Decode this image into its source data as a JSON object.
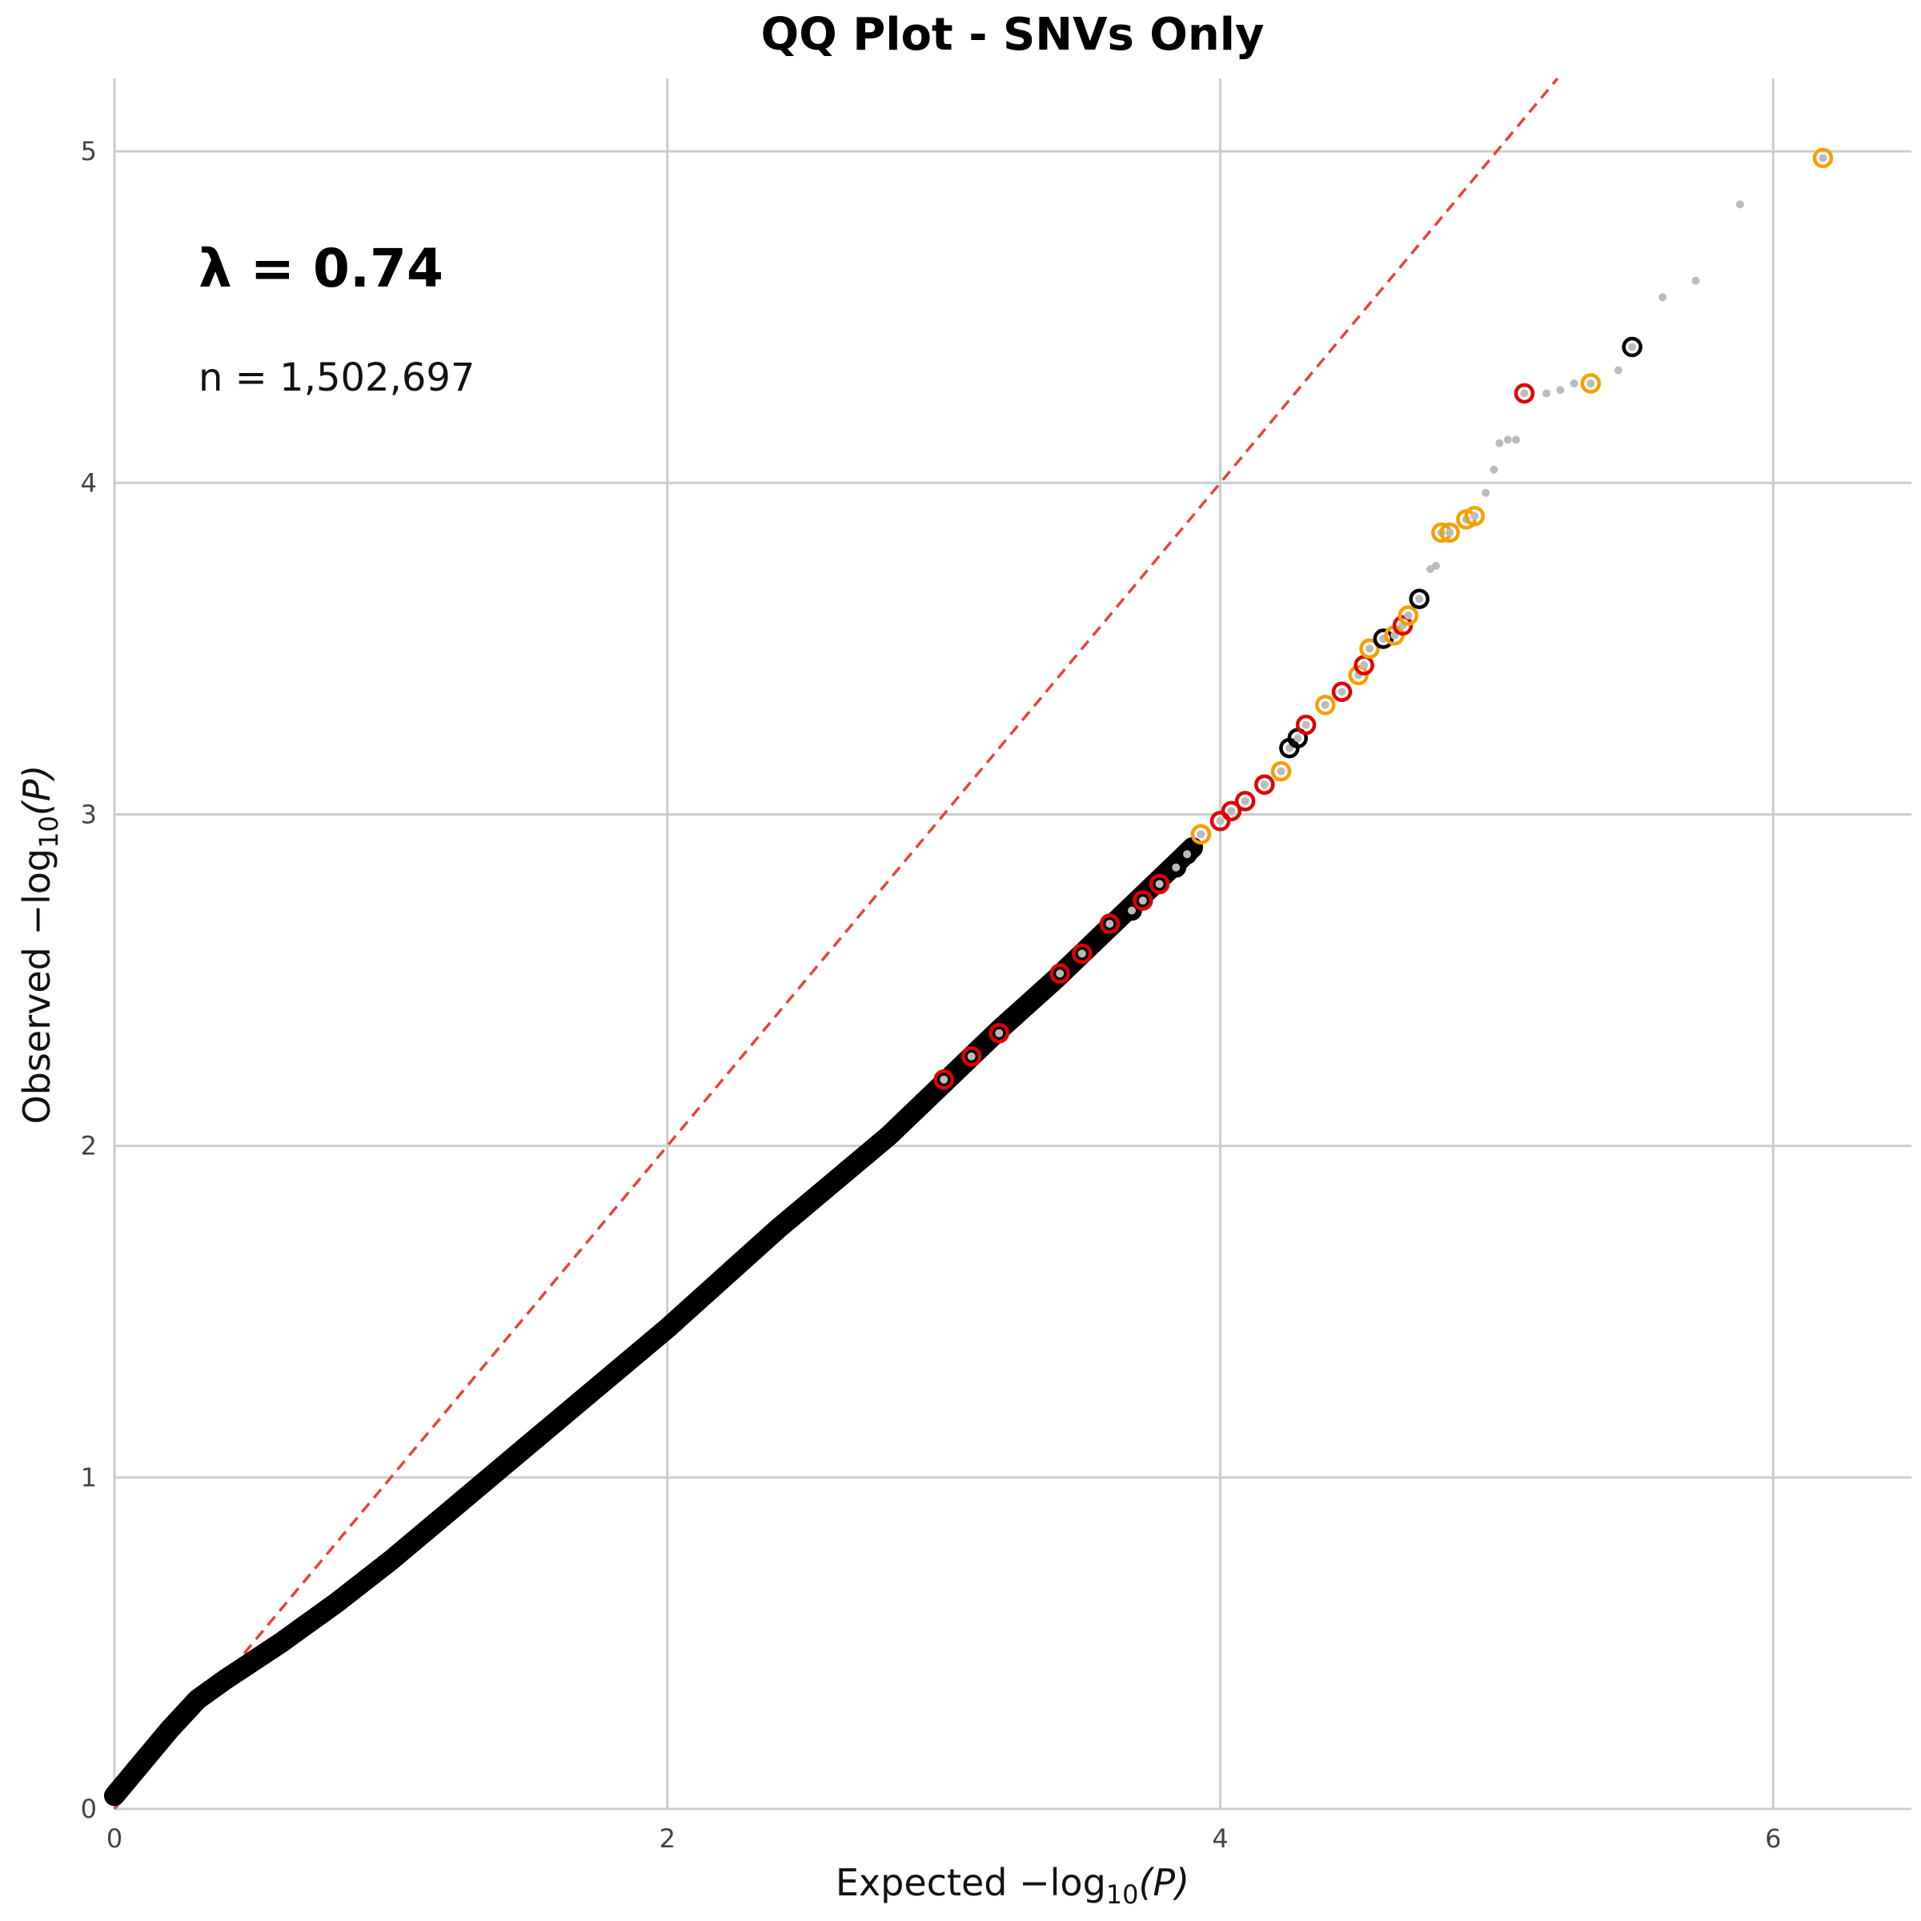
{
  "chart_data": {
    "type": "scatter",
    "title": "QQ Plot - SNVs Only",
    "xlabel_prefix": "Expected −log",
    "ylabel_prefix": "Observed −log",
    "label_sub": "10",
    "label_suffix": "(P)",
    "xlim": [
      0,
      6.5
    ],
    "ylim": [
      0,
      5.22
    ],
    "x_ticks": [
      0,
      2,
      4,
      6
    ],
    "y_ticks": [
      0,
      1,
      2,
      3,
      4,
      5
    ],
    "grid": true,
    "annotations": {
      "lambda_text": "λ = 0.74",
      "n_text": "n = 1,502,697"
    },
    "reference_line": {
      "slope": 1,
      "intercept": 0,
      "color": "#e8443a",
      "style": "dashed"
    },
    "colors": {
      "bulk": "#000000",
      "red": "#e00000",
      "orange": "#f5a000",
      "gray": "#bbbbbb",
      "black": "#000000"
    },
    "curve": {
      "x": [
        0,
        0.1,
        0.2,
        0.3,
        0.4,
        0.6,
        0.8,
        1.0,
        1.2,
        1.4,
        1.6,
        1.8,
        2.0,
        2.2,
        2.4,
        2.6,
        2.8,
        3.0,
        3.2,
        3.4,
        3.6,
        3.8,
        3.9
      ],
      "y": [
        0.04,
        0.14,
        0.24,
        0.33,
        0.39,
        0.5,
        0.62,
        0.75,
        0.89,
        1.03,
        1.17,
        1.31,
        1.45,
        1.6,
        1.75,
        1.89,
        2.03,
        2.19,
        2.35,
        2.5,
        2.66,
        2.82,
        2.9
      ]
    },
    "highlighted_points": [
      {
        "x": 3.0,
        "y": 2.2,
        "group": "red"
      },
      {
        "x": 3.1,
        "y": 2.27,
        "group": "red"
      },
      {
        "x": 3.2,
        "y": 2.34,
        "group": "red"
      },
      {
        "x": 3.42,
        "y": 2.52,
        "group": "red"
      },
      {
        "x": 3.5,
        "y": 2.58,
        "group": "red"
      },
      {
        "x": 3.6,
        "y": 2.67,
        "group": "red"
      },
      {
        "x": 3.68,
        "y": 2.71,
        "group": "black"
      },
      {
        "x": 3.72,
        "y": 2.74,
        "group": "red"
      },
      {
        "x": 3.78,
        "y": 2.79,
        "group": "red"
      },
      {
        "x": 3.84,
        "y": 2.84,
        "group": "black"
      },
      {
        "x": 3.88,
        "y": 2.88,
        "group": "black"
      },
      {
        "x": 3.93,
        "y": 2.94,
        "group": "orange"
      },
      {
        "x": 4.0,
        "y": 2.98,
        "group": "red"
      },
      {
        "x": 4.04,
        "y": 3.01,
        "group": "red"
      },
      {
        "x": 4.09,
        "y": 3.04,
        "group": "red"
      },
      {
        "x": 4.16,
        "y": 3.09,
        "group": "red"
      },
      {
        "x": 4.22,
        "y": 3.13,
        "group": "orange"
      },
      {
        "x": 4.25,
        "y": 3.2,
        "group": "black"
      },
      {
        "x": 4.28,
        "y": 3.23,
        "group": "black"
      },
      {
        "x": 4.31,
        "y": 3.27,
        "group": "red"
      },
      {
        "x": 4.38,
        "y": 3.33,
        "group": "orange"
      },
      {
        "x": 4.44,
        "y": 3.37,
        "group": "red"
      },
      {
        "x": 4.5,
        "y": 3.42,
        "group": "orange"
      },
      {
        "x": 4.52,
        "y": 3.45,
        "group": "red"
      },
      {
        "x": 4.54,
        "y": 3.5,
        "group": "orange"
      },
      {
        "x": 4.59,
        "y": 3.53,
        "group": "black"
      },
      {
        "x": 4.63,
        "y": 3.54,
        "group": "orange"
      },
      {
        "x": 4.66,
        "y": 3.57,
        "group": "red"
      },
      {
        "x": 4.68,
        "y": 3.6,
        "group": "orange"
      },
      {
        "x": 4.72,
        "y": 3.65,
        "group": "black"
      },
      {
        "x": 4.8,
        "y": 3.85,
        "group": "orange"
      },
      {
        "x": 4.83,
        "y": 3.85,
        "group": "orange"
      },
      {
        "x": 4.89,
        "y": 3.89,
        "group": "orange"
      },
      {
        "x": 4.92,
        "y": 3.9,
        "group": "orange"
      },
      {
        "x": 5.1,
        "y": 4.27,
        "group": "red"
      },
      {
        "x": 5.34,
        "y": 4.3,
        "group": "orange"
      },
      {
        "x": 5.49,
        "y": 4.41,
        "group": "black"
      },
      {
        "x": 6.18,
        "y": 4.98,
        "group": "orange"
      }
    ],
    "gray_points": [
      {
        "x": 4.76,
        "y": 3.74
      },
      {
        "x": 4.78,
        "y": 3.75
      },
      {
        "x": 4.96,
        "y": 3.97
      },
      {
        "x": 4.99,
        "y": 4.04
      },
      {
        "x": 5.01,
        "y": 4.12
      },
      {
        "x": 5.04,
        "y": 4.13
      },
      {
        "x": 5.07,
        "y": 4.13
      },
      {
        "x": 5.18,
        "y": 4.27
      },
      {
        "x": 5.23,
        "y": 4.28
      },
      {
        "x": 5.28,
        "y": 4.3
      },
      {
        "x": 5.44,
        "y": 4.34
      },
      {
        "x": 5.6,
        "y": 4.56
      },
      {
        "x": 5.72,
        "y": 4.61
      },
      {
        "x": 5.88,
        "y": 4.84
      }
    ]
  }
}
